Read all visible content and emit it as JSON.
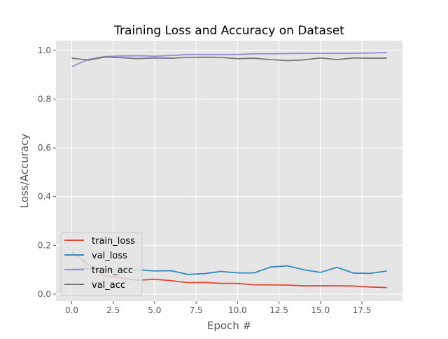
{
  "chart_data": {
    "type": "line",
    "title": "Training Loss and Accuracy on Dataset",
    "xlabel": "Epoch #",
    "ylabel": "Loss/Accuracy",
    "xlim": [
      -0.95,
      19.95
    ],
    "ylim": [
      -0.029,
      1.04
    ],
    "xticks": [
      "0.0",
      "2.5",
      "5.0",
      "7.5",
      "10.0",
      "12.5",
      "15.0",
      "17.5"
    ],
    "xtick_values": [
      0,
      2.5,
      5,
      7.5,
      10,
      12.5,
      15,
      17.5
    ],
    "yticks": [
      "0.0",
      "0.2",
      "0.4",
      "0.6",
      "0.8",
      "1.0"
    ],
    "ytick_values": [
      0,
      0.2,
      0.4,
      0.6,
      0.8,
      1.0
    ],
    "grid": true,
    "legend_position": "lower-left",
    "x": [
      0,
      1,
      2,
      3,
      4,
      5,
      6,
      7,
      8,
      9,
      10,
      11,
      12,
      13,
      14,
      15,
      16,
      17,
      18,
      19
    ],
    "series": [
      {
        "name": "train_loss",
        "color": "#E24A33",
        "values": [
          0.175,
          0.12,
          0.075,
          0.065,
          0.057,
          0.061,
          0.055,
          0.047,
          0.048,
          0.044,
          0.044,
          0.038,
          0.038,
          0.037,
          0.034,
          0.034,
          0.034,
          0.033,
          0.029,
          0.027
        ]
      },
      {
        "name": "val_loss",
        "color": "#348ABD",
        "values": [
          0.105,
          0.105,
          0.1,
          0.1,
          0.1,
          0.095,
          0.096,
          0.081,
          0.084,
          0.093,
          0.087,
          0.087,
          0.111,
          0.116,
          0.1,
          0.089,
          0.11,
          0.086,
          0.085,
          0.095
        ]
      },
      {
        "name": "train_acc",
        "color": "#988ED5",
        "values": [
          0.933,
          0.963,
          0.975,
          0.977,
          0.978,
          0.976,
          0.979,
          0.983,
          0.983,
          0.983,
          0.983,
          0.986,
          0.986,
          0.987,
          0.988,
          0.988,
          0.988,
          0.988,
          0.989,
          0.991
        ]
      },
      {
        "name": "val_acc",
        "color": "#777777",
        "values": [
          0.968,
          0.96,
          0.973,
          0.97,
          0.966,
          0.969,
          0.968,
          0.971,
          0.972,
          0.971,
          0.966,
          0.968,
          0.962,
          0.958,
          0.961,
          0.969,
          0.962,
          0.969,
          0.968,
          0.968
        ]
      }
    ]
  }
}
